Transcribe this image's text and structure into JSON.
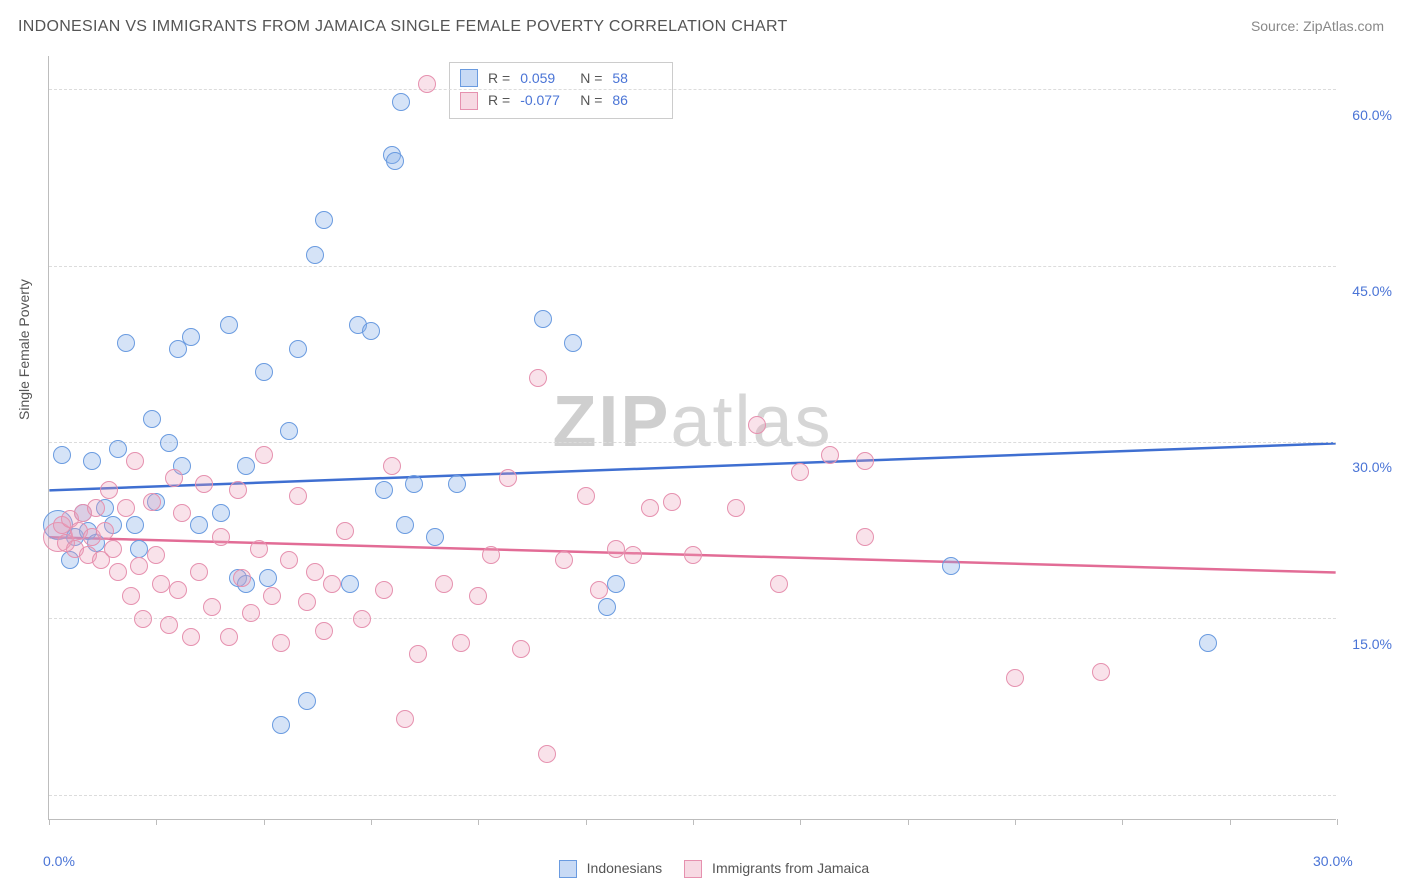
{
  "title": "INDONESIAN VS IMMIGRANTS FROM JAMAICA SINGLE FEMALE POVERTY CORRELATION CHART",
  "source_label": "Source: ",
  "source_name": "ZipAtlas.com",
  "y_axis_title": "Single Female Poverty",
  "watermark": {
    "bold": "ZIP",
    "rest": "atlas"
  },
  "chart": {
    "type": "scatter",
    "background_color": "#ffffff",
    "grid_color": "#dcdcdc",
    "axis_color": "#bdbdbd",
    "text_color": "#555555",
    "value_color": "#4a74d6",
    "xlim": [
      0,
      30
    ],
    "ylim": [
      0,
      65
    ],
    "x_ticks_minor": [
      0,
      2.5,
      5,
      7.5,
      10,
      12.5,
      15,
      17.5,
      20,
      22.5,
      25,
      27.5,
      30
    ],
    "x_labels": [
      {
        "v": 0,
        "t": "0.0%"
      },
      {
        "v": 30,
        "t": "30.0%"
      }
    ],
    "y_gridlines": [
      2,
      17,
      32,
      47,
      62
    ],
    "y_labels": [
      {
        "v": 15,
        "t": "15.0%"
      },
      {
        "v": 30,
        "t": "30.0%"
      },
      {
        "v": 45,
        "t": "45.0%"
      },
      {
        "v": 60,
        "t": "60.0%"
      }
    ],
    "marker_radius": 9,
    "marker_radius_large": 15,
    "line_width": 2.5,
    "series": [
      {
        "id": "s1",
        "label": "Indonesians",
        "color_fill": "rgba(134,174,232,0.35)",
        "color_stroke": "#6a9be0",
        "trend_color": "#3f6fd1",
        "R": "0.059",
        "N": "58",
        "trend": {
          "y_at_x0": 28.0,
          "y_at_xmax": 32.0
        },
        "points": [
          {
            "x": 0.2,
            "y": 25.0,
            "r": 15
          },
          {
            "x": 0.3,
            "y": 31.0
          },
          {
            "x": 0.5,
            "y": 22.0
          },
          {
            "x": 0.6,
            "y": 24.0
          },
          {
            "x": 0.8,
            "y": 26.0
          },
          {
            "x": 0.9,
            "y": 24.5
          },
          {
            "x": 1.0,
            "y": 30.5
          },
          {
            "x": 1.1,
            "y": 23.5
          },
          {
            "x": 1.3,
            "y": 26.5
          },
          {
            "x": 1.5,
            "y": 25.0
          },
          {
            "x": 1.6,
            "y": 31.5
          },
          {
            "x": 1.8,
            "y": 40.5
          },
          {
            "x": 2.0,
            "y": 25.0
          },
          {
            "x": 2.1,
            "y": 23.0
          },
          {
            "x": 2.4,
            "y": 34.0
          },
          {
            "x": 2.5,
            "y": 27.0
          },
          {
            "x": 2.8,
            "y": 32.0
          },
          {
            "x": 3.0,
            "y": 40.0
          },
          {
            "x": 3.1,
            "y": 30.0
          },
          {
            "x": 3.3,
            "y": 41.0
          },
          {
            "x": 3.5,
            "y": 25.0
          },
          {
            "x": 4.0,
            "y": 26.0
          },
          {
            "x": 4.2,
            "y": 42.0
          },
          {
            "x": 4.4,
            "y": 20.5
          },
          {
            "x": 4.6,
            "y": 20.0
          },
          {
            "x": 4.6,
            "y": 30.0
          },
          {
            "x": 5.0,
            "y": 38.0
          },
          {
            "x": 5.1,
            "y": 20.5
          },
          {
            "x": 5.4,
            "y": 8.0
          },
          {
            "x": 5.6,
            "y": 33.0
          },
          {
            "x": 5.8,
            "y": 40.0
          },
          {
            "x": 6.0,
            "y": 10.0
          },
          {
            "x": 6.2,
            "y": 48.0
          },
          {
            "x": 6.4,
            "y": 51.0
          },
          {
            "x": 7.0,
            "y": 20.0
          },
          {
            "x": 7.2,
            "y": 42.0
          },
          {
            "x": 7.5,
            "y": 41.5
          },
          {
            "x": 7.8,
            "y": 28.0
          },
          {
            "x": 8.0,
            "y": 56.5
          },
          {
            "x": 8.05,
            "y": 56.0
          },
          {
            "x": 8.2,
            "y": 61.0
          },
          {
            "x": 8.3,
            "y": 25.0
          },
          {
            "x": 8.5,
            "y": 28.5
          },
          {
            "x": 9.0,
            "y": 24.0
          },
          {
            "x": 9.5,
            "y": 28.5
          },
          {
            "x": 11.5,
            "y": 42.5
          },
          {
            "x": 12.2,
            "y": 40.5
          },
          {
            "x": 13.0,
            "y": 18.0
          },
          {
            "x": 13.2,
            "y": 20.0
          },
          {
            "x": 21.0,
            "y": 21.5
          },
          {
            "x": 27.0,
            "y": 15.0
          }
        ]
      },
      {
        "id": "s2",
        "label": "Immigrants from Jamaica",
        "color_fill": "rgba(236,160,185,0.30)",
        "color_stroke": "#e691af",
        "trend_color": "#e26c96",
        "R": "-0.077",
        "N": "86",
        "trend": {
          "y_at_x0": 24.0,
          "y_at_xmax": 21.0
        },
        "points": [
          {
            "x": 0.2,
            "y": 24.0,
            "r": 15
          },
          {
            "x": 0.3,
            "y": 25.0
          },
          {
            "x": 0.4,
            "y": 23.5
          },
          {
            "x": 0.5,
            "y": 25.5
          },
          {
            "x": 0.6,
            "y": 23.0
          },
          {
            "x": 0.7,
            "y": 24.5
          },
          {
            "x": 0.8,
            "y": 26.0
          },
          {
            "x": 0.9,
            "y": 22.5
          },
          {
            "x": 1.0,
            "y": 24.0
          },
          {
            "x": 1.1,
            "y": 26.5
          },
          {
            "x": 1.2,
            "y": 22.0
          },
          {
            "x": 1.3,
            "y": 24.5
          },
          {
            "x": 1.4,
            "y": 28.0
          },
          {
            "x": 1.5,
            "y": 23.0
          },
          {
            "x": 1.6,
            "y": 21.0
          },
          {
            "x": 1.8,
            "y": 26.5
          },
          {
            "x": 1.9,
            "y": 19.0
          },
          {
            "x": 2.0,
            "y": 30.5
          },
          {
            "x": 2.1,
            "y": 21.5
          },
          {
            "x": 2.2,
            "y": 17.0
          },
          {
            "x": 2.4,
            "y": 27.0
          },
          {
            "x": 2.5,
            "y": 22.5
          },
          {
            "x": 2.6,
            "y": 20.0
          },
          {
            "x": 2.8,
            "y": 16.5
          },
          {
            "x": 2.9,
            "y": 29.0
          },
          {
            "x": 3.0,
            "y": 19.5
          },
          {
            "x": 3.1,
            "y": 26.0
          },
          {
            "x": 3.3,
            "y": 15.5
          },
          {
            "x": 3.5,
            "y": 21.0
          },
          {
            "x": 3.6,
            "y": 28.5
          },
          {
            "x": 3.8,
            "y": 18.0
          },
          {
            "x": 4.0,
            "y": 24.0
          },
          {
            "x": 4.2,
            "y": 15.5
          },
          {
            "x": 4.4,
            "y": 28.0
          },
          {
            "x": 4.5,
            "y": 20.5
          },
          {
            "x": 4.7,
            "y": 17.5
          },
          {
            "x": 4.9,
            "y": 23.0
          },
          {
            "x": 5.0,
            "y": 31.0
          },
          {
            "x": 5.2,
            "y": 19.0
          },
          {
            "x": 5.4,
            "y": 15.0
          },
          {
            "x": 5.6,
            "y": 22.0
          },
          {
            "x": 5.8,
            "y": 27.5
          },
          {
            "x": 6.0,
            "y": 18.5
          },
          {
            "x": 6.2,
            "y": 21.0
          },
          {
            "x": 6.4,
            "y": 16.0
          },
          {
            "x": 6.6,
            "y": 20.0
          },
          {
            "x": 6.9,
            "y": 24.5
          },
          {
            "x": 7.3,
            "y": 17.0
          },
          {
            "x": 7.8,
            "y": 19.5
          },
          {
            "x": 8.0,
            "y": 30.0
          },
          {
            "x": 8.3,
            "y": 8.5
          },
          {
            "x": 8.6,
            "y": 14.0
          },
          {
            "x": 8.8,
            "y": 62.5
          },
          {
            "x": 9.2,
            "y": 20.0
          },
          {
            "x": 9.6,
            "y": 15.0
          },
          {
            "x": 10.0,
            "y": 19.0
          },
          {
            "x": 10.3,
            "y": 22.5
          },
          {
            "x": 10.7,
            "y": 29.0
          },
          {
            "x": 11.0,
            "y": 14.5
          },
          {
            "x": 11.4,
            "y": 37.5
          },
          {
            "x": 11.6,
            "y": 5.5
          },
          {
            "x": 12.0,
            "y": 22.0
          },
          {
            "x": 12.5,
            "y": 27.5
          },
          {
            "x": 12.8,
            "y": 19.5
          },
          {
            "x": 13.2,
            "y": 23.0
          },
          {
            "x": 13.6,
            "y": 22.5
          },
          {
            "x": 14.0,
            "y": 26.5
          },
          {
            "x": 14.5,
            "y": 27.0
          },
          {
            "x": 15.0,
            "y": 22.5
          },
          {
            "x": 16.0,
            "y": 26.5
          },
          {
            "x": 16.5,
            "y": 33.5
          },
          {
            "x": 17.0,
            "y": 20.0
          },
          {
            "x": 17.5,
            "y": 29.5
          },
          {
            "x": 18.2,
            "y": 31.0
          },
          {
            "x": 19.0,
            "y": 24.0
          },
          {
            "x": 19.0,
            "y": 30.5
          },
          {
            "x": 22.5,
            "y": 12.0
          },
          {
            "x": 24.5,
            "y": 12.5
          }
        ]
      }
    ]
  },
  "rn_legend_labels": {
    "R": "R =",
    "N": "N ="
  },
  "bottom_legend": [
    {
      "series": "s1",
      "label": "Indonesians"
    },
    {
      "series": "s2",
      "label": "Immigrants from Jamaica"
    }
  ]
}
